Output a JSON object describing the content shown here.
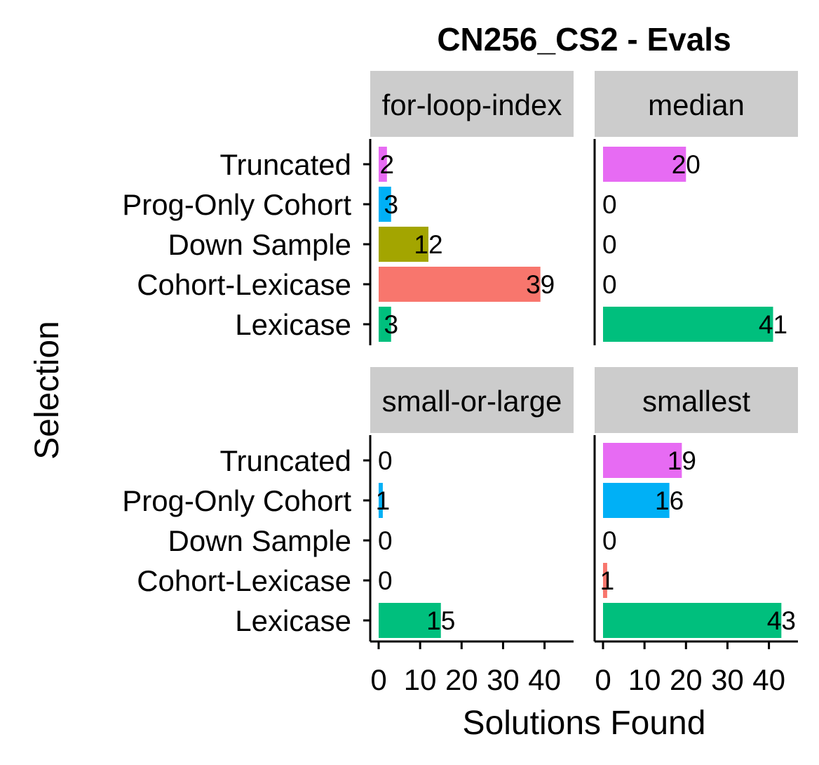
{
  "chart_data": {
    "type": "bar",
    "orientation": "horizontal",
    "title": "CN256_CS2 - Evals",
    "xlabel": "Solutions Found",
    "ylabel": "Selection",
    "categories": [
      "Truncated",
      "Prog-Only Cohort",
      "Down Sample",
      "Cohort-Lexicase",
      "Lexicase"
    ],
    "colors": {
      "Truncated": "#E76BF3",
      "Prog-Only Cohort": "#00B0F6",
      "Down Sample": "#A3A500",
      "Cohort-Lexicase": "#F8766D",
      "Lexicase": "#00BF7D"
    },
    "strip_color": "#CCCCCC",
    "xlim": [
      0,
      47
    ],
    "x_ticks": [
      0,
      10,
      20,
      30,
      40
    ],
    "x_tick_labels": [
      "0",
      "10",
      "20",
      "30",
      "40"
    ],
    "grid": false,
    "legend": "none",
    "facets": [
      {
        "label": "for-loop-index",
        "values": [
          2,
          3,
          12,
          39,
          3
        ]
      },
      {
        "label": "median",
        "values": [
          20,
          0,
          0,
          0,
          41
        ]
      },
      {
        "label": "small-or-large",
        "values": [
          0,
          1,
          0,
          0,
          15
        ]
      },
      {
        "label": "smallest",
        "values": [
          19,
          16,
          0,
          1,
          43
        ]
      }
    ]
  }
}
